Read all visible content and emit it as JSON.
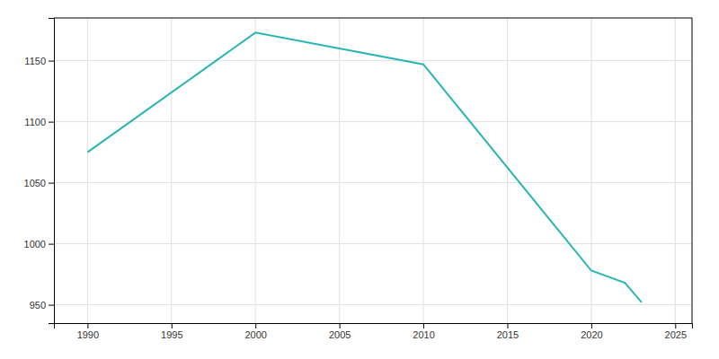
{
  "chart_data": {
    "type": "line",
    "x": [
      1990,
      2000,
      2010,
      2020,
      2022,
      2023
    ],
    "values": [
      1075,
      1173,
      1147,
      978,
      968,
      952
    ],
    "color": "#2ab5b5",
    "xlim": [
      1988,
      2026
    ],
    "ylim": [
      935,
      1185
    ],
    "xticks": [
      1990,
      1995,
      2000,
      2005,
      2010,
      2015,
      2020,
      2025
    ],
    "yticks": [
      950,
      1000,
      1050,
      1100,
      1150
    ],
    "grid": true
  }
}
